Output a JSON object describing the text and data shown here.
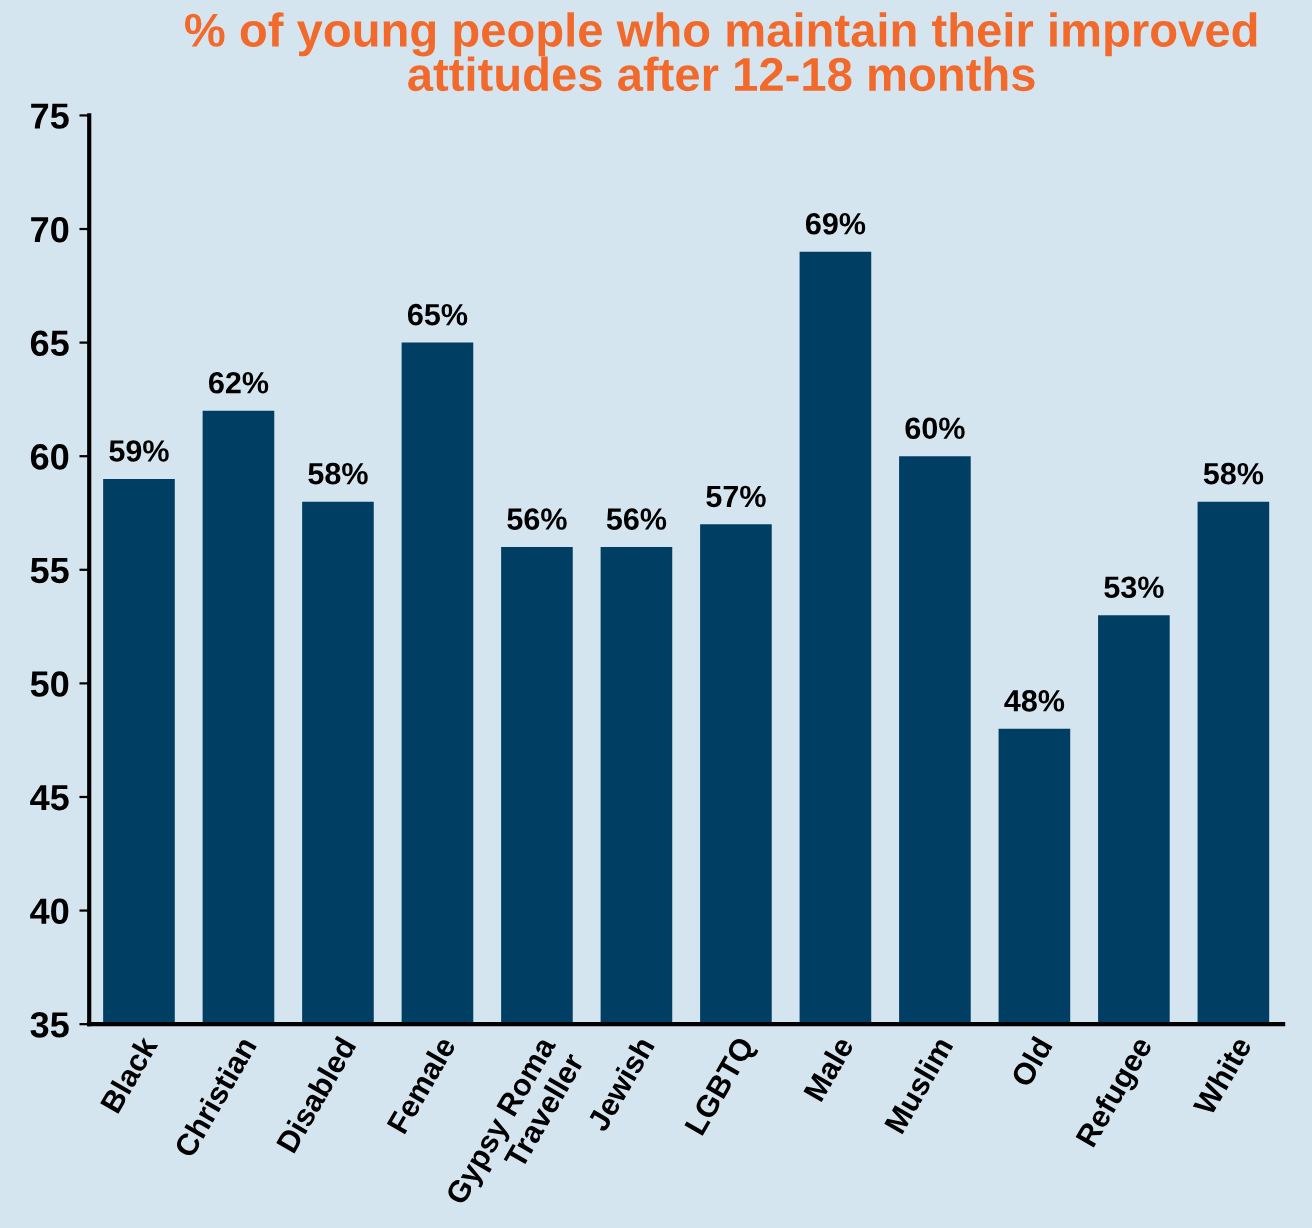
{
  "chart_data": {
    "type": "bar",
    "title": "% of young people who maintain their improved\nattitudes after 12-18 months",
    "categories": [
      "Black",
      "Christian",
      "Disabled",
      "Female",
      "Gypsy Roma\nTraveller",
      "Jewish",
      "LGBTQ",
      "Male",
      "Muslim",
      "Old",
      "Refugee",
      "White"
    ],
    "values": [
      59,
      62,
      58,
      65,
      56,
      56,
      57,
      69,
      60,
      48,
      53,
      58
    ],
    "value_labels": [
      "59%",
      "62%",
      "58%",
      "65%",
      "56%",
      "56%",
      "57%",
      "69%",
      "60%",
      "48%",
      "53%",
      "58%"
    ],
    "color": "#003f63",
    "ylim": [
      35,
      75
    ],
    "yticks": [
      35,
      40,
      45,
      50,
      55,
      60,
      65,
      70,
      75
    ],
    "grid": false
  }
}
